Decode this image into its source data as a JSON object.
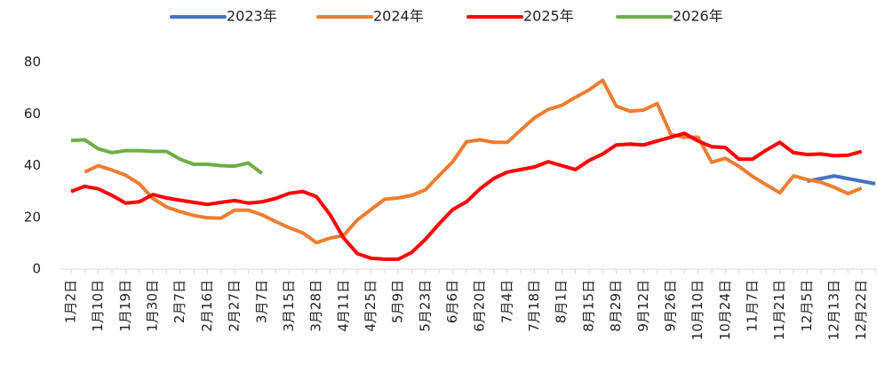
{
  "chart_data": {
    "type": "line",
    "categories": [
      "1月2日",
      null,
      "1月10日",
      null,
      "1月19日",
      null,
      "1月30日",
      null,
      "2月7日",
      null,
      "2月16日",
      null,
      "2月27日",
      null,
      "3月7日",
      null,
      "3月15日",
      null,
      "3月28日",
      null,
      "4月11日",
      null,
      "4月25日",
      null,
      "5月9日",
      null,
      "5月23日",
      null,
      "6月6日",
      null,
      "6月20日",
      null,
      "7月4日",
      null,
      "7月18日",
      null,
      "8月1日",
      null,
      "8月15日",
      null,
      "8月29日",
      null,
      "9月12日",
      null,
      "9月26日",
      null,
      "10月10日",
      null,
      "10月24日",
      null,
      "11月7日",
      null,
      "11月21日",
      null,
      "12月5日",
      null,
      "12月13日",
      null,
      "12月22日",
      null
    ],
    "series": [
      {
        "name": "2023年",
        "color": "#4472c4",
        "values": [
          null,
          null,
          null,
          null,
          null,
          null,
          null,
          null,
          null,
          null,
          null,
          null,
          null,
          null,
          null,
          null,
          null,
          null,
          null,
          null,
          null,
          null,
          null,
          null,
          null,
          null,
          null,
          null,
          null,
          null,
          null,
          null,
          null,
          null,
          null,
          null,
          null,
          null,
          null,
          null,
          null,
          null,
          null,
          null,
          null,
          null,
          null,
          null,
          null,
          null,
          null,
          null,
          null,
          null,
          34,
          35,
          36,
          35,
          34,
          33
        ]
      },
      {
        "name": "2024年",
        "color": "#ed7d31",
        "values": [
          null,
          37.5,
          40,
          38.3,
          36.3,
          33,
          27.3,
          24,
          22.2,
          20.7,
          19.8,
          19.7,
          22.8,
          22.8,
          21,
          18.4,
          16,
          14,
          10.2,
          12,
          13,
          19,
          23,
          27,
          27.5,
          28.5,
          30.7,
          36.2,
          41.5,
          49.2,
          50,
          49,
          49,
          53.8,
          58.5,
          61.7,
          63.3,
          66.4,
          69.3,
          73,
          63,
          61,
          61.5,
          64,
          52,
          51,
          51,
          41.3,
          42.8,
          39.7,
          35.8,
          32.6,
          29.5,
          36,
          34.6,
          33.6,
          31.6,
          29.2,
          31.3,
          null
        ]
      },
      {
        "name": "2025年",
        "color": "#ff0000",
        "values": [
          30,
          32,
          31,
          28.5,
          25.5,
          26,
          28.8,
          27.5,
          26.6,
          25.8,
          25,
          25.8,
          26.5,
          25.5,
          26,
          27.3,
          29.3,
          30,
          28,
          21,
          12,
          6,
          4.2,
          3.8,
          3.8,
          6.5,
          11.5,
          17.5,
          23,
          26,
          31,
          35,
          37.5,
          38.5,
          39.5,
          41.5,
          40,
          38.5,
          42,
          44.5,
          48,
          48.3,
          48,
          49.5,
          51,
          52.5,
          49.5,
          47.3,
          47,
          42.5,
          42.5,
          46,
          49,
          45,
          44.3,
          44.5,
          43.8,
          44,
          45.5,
          null
        ]
      },
      {
        "name": "2026年",
        "color": "#70ad47",
        "values": [
          49.7,
          50,
          46.5,
          45,
          45.8,
          45.8,
          45.5,
          45.5,
          42.5,
          40.5,
          40.5,
          40,
          39.8,
          41,
          37,
          null,
          null,
          null,
          null,
          null,
          null,
          null,
          null,
          null,
          null,
          null,
          null,
          null,
          null,
          null,
          null,
          null,
          null,
          null,
          null,
          null,
          null,
          null,
          null,
          null,
          null,
          null,
          null,
          null,
          null,
          null,
          null,
          null,
          null,
          null,
          null,
          null,
          null,
          null,
          null,
          null,
          null,
          null,
          null,
          null
        ]
      }
    ],
    "ylim": [
      0,
      80
    ],
    "yticks": [
      0,
      20,
      40,
      60,
      80
    ],
    "legend": "top"
  }
}
